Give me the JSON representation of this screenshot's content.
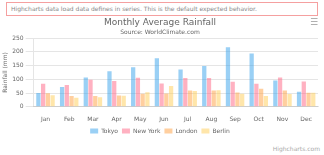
{
  "chart_data": {
    "type": "bar",
    "title": "Monthly Average Rainfall",
    "subtitle": "Source: WorldClimate.com",
    "ylabel": "Rainfall (mm)",
    "categories": [
      "Jan",
      "Feb",
      "Mar",
      "Apr",
      "May",
      "Jun",
      "Jul",
      "Aug",
      "Sep",
      "Oct",
      "Nov",
      "Dec"
    ],
    "series": [
      {
        "name": "Tokyo",
        "values": [
          49.9,
          71.5,
          106.4,
          129.2,
          144.0,
          176.0,
          135.6,
          148.5,
          216.4,
          194.1,
          95.6,
          54.4
        ]
      },
      {
        "name": "New York",
        "values": [
          83.6,
          78.8,
          98.5,
          93.4,
          106.0,
          84.5,
          105.0,
          104.3,
          91.2,
          83.5,
          106.6,
          92.3
        ]
      },
      {
        "name": "London",
        "values": [
          48.9,
          38.8,
          39.3,
          41.4,
          47.0,
          48.3,
          59.0,
          59.6,
          52.4,
          65.2,
          59.3,
          51.2
        ]
      },
      {
        "name": "Berlin",
        "values": [
          42.4,
          33.2,
          34.5,
          39.7,
          52.6,
          75.5,
          57.4,
          60.4,
          47.6,
          39.1,
          46.8,
          51.1
        ]
      }
    ],
    "ylim": [
      0,
      250
    ],
    "yticks": [
      0,
      50,
      100,
      150,
      200,
      250
    ],
    "grid": true,
    "legend": "bottom",
    "annotations": [
      "Highcharts data load data defines in series. This is the default expected behavior.",
      "☰",
      "Highcharts.com"
    ]
  }
}
